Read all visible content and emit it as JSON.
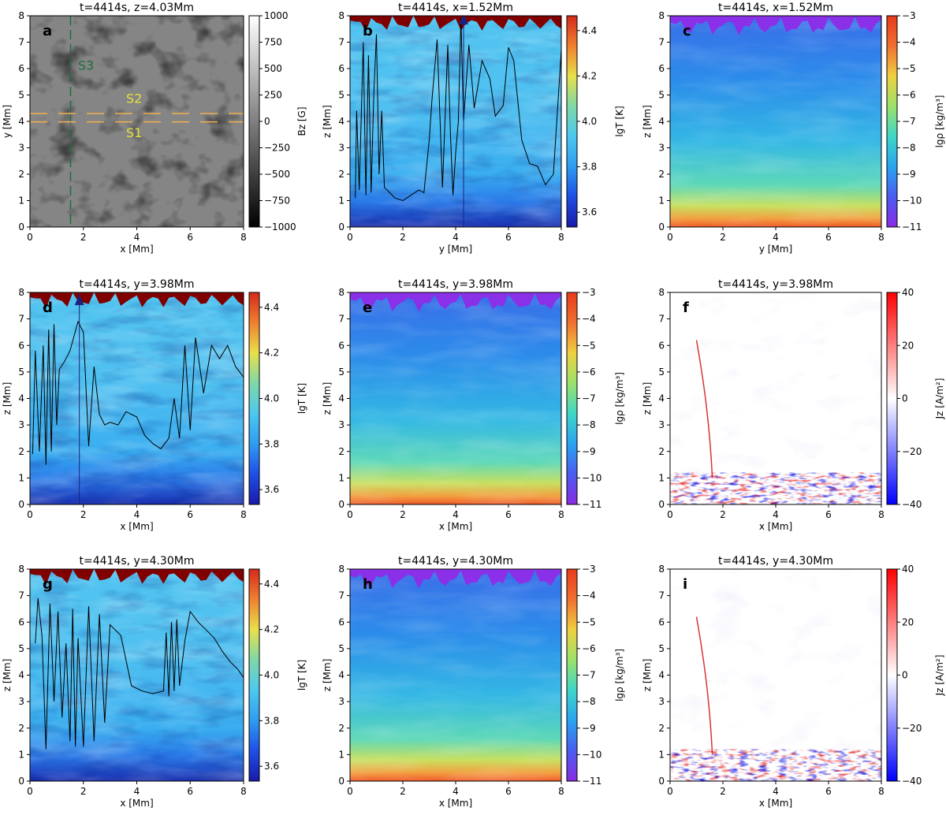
{
  "colors": {
    "bz": [
      "#000000",
      "#ffffff"
    ],
    "lgT": [
      "#1a1aa8",
      "#1e4fe6",
      "#2f9cf0",
      "#4cc8f0",
      "#7fd8a8",
      "#e8e04a",
      "#f08030",
      "#d42a1a",
      "#800000"
    ],
    "rho": [
      "#8a2be2",
      "#4a5cf0",
      "#2aa4f0",
      "#3fd6c8",
      "#9be26a",
      "#f0d040",
      "#f07030",
      "#e83a1a"
    ],
    "jz": [
      "#0000ff",
      "#ffffff",
      "#ff0000"
    ],
    "axis": "#000000",
    "line": "#000000",
    "cut_green": "#1e6e3c",
    "cut_orange": "#f0b050",
    "label_yellow": "#e8e040",
    "label_green": "#1e6e3c",
    "marker": "#1a237e"
  },
  "chart_data": [
    {
      "panel": "a",
      "type": "heatmap",
      "title": "t=4414s, z=4.03Mm",
      "xlabel": "x [Mm]",
      "ylabel": "y [Mm]",
      "xlim": [
        0,
        8
      ],
      "ylim": [
        0,
        8
      ],
      "xticks": [
        "0",
        "2",
        "4",
        "6",
        "8"
      ],
      "yticks": [
        "0",
        "1",
        "2",
        "3",
        "4",
        "5",
        "6",
        "7",
        "8"
      ],
      "colormap": "bz",
      "clabel": "Bz [G]",
      "cticks": [
        "1000",
        "750",
        "500",
        "250",
        "0",
        "−250",
        "−500",
        "−750",
        "−1000"
      ],
      "annotations": [
        {
          "text": "S3",
          "x": 2.1,
          "y": 5.95,
          "color": "label_green"
        },
        {
          "text": "S2",
          "x": 3.9,
          "y": 4.7,
          "color": "label_yellow"
        },
        {
          "text": "S1",
          "x": 3.9,
          "y": 3.4,
          "color": "label_yellow"
        }
      ],
      "cuts": [
        {
          "orient": "v",
          "at": 1.52,
          "color": "cut_green"
        },
        {
          "orient": "h",
          "at": 4.3,
          "color": "cut_orange"
        },
        {
          "orient": "h",
          "at": 3.98,
          "color": "cut_orange"
        }
      ]
    },
    {
      "panel": "b",
      "type": "heatmap",
      "title": "t=4414s, x=1.52Mm",
      "xlabel": "y [Mm]",
      "ylabel": "z [Mm]",
      "xlim": [
        0,
        8
      ],
      "ylim": [
        0,
        8
      ],
      "xticks": [
        "0",
        "2",
        "4",
        "6",
        "8"
      ],
      "yticks": [
        "0",
        "1",
        "2",
        "3",
        "4",
        "5",
        "6",
        "7",
        "8"
      ],
      "colormap": "lgT",
      "clabel": "lgT [K]",
      "cticks": [
        "4.4",
        "4.2",
        "4.0",
        "3.8",
        "3.6"
      ],
      "line": {
        "x": [
          0.2,
          0.25,
          0.35,
          0.5,
          0.6,
          0.7,
          0.8,
          0.9,
          1.0,
          1.1,
          1.2,
          1.3,
          1.5,
          1.7,
          2.0,
          2.3,
          2.6,
          2.8,
          3.0,
          3.1,
          3.3,
          3.5,
          3.7,
          3.8,
          3.9,
          4.0,
          4.1,
          4.2,
          4.3,
          4.5,
          4.7,
          5.0,
          5.3,
          5.5,
          5.8,
          6.0,
          6.2,
          6.5,
          6.8,
          7.1,
          7.4,
          7.7,
          8.0
        ],
        "z": [
          1.1,
          4.4,
          1.4,
          7.0,
          1.2,
          6.5,
          1.3,
          5.0,
          7.3,
          2.0,
          4.4,
          1.5,
          1.3,
          1.1,
          1.0,
          1.2,
          1.4,
          1.3,
          3.3,
          4.8,
          7.1,
          1.5,
          6.9,
          3.6,
          1.2,
          2.8,
          4.0,
          7.9,
          4.0,
          6.9,
          4.5,
          6.3,
          5.6,
          4.2,
          4.6,
          6.8,
          6.3,
          3.3,
          2.4,
          2.3,
          1.6,
          2.0,
          6.7
        ]
      },
      "markers": [
        {
          "type": "triangle",
          "x": 4.3,
          "z": 7.85
        }
      ],
      "vline": 4.3
    },
    {
      "panel": "c",
      "type": "heatmap",
      "title": "t=4414s, x=1.52Mm",
      "xlabel": "y [Mm]",
      "ylabel": "z [Mm]",
      "xlim": [
        0,
        8
      ],
      "ylim": [
        0,
        8
      ],
      "xticks": [
        "0",
        "2",
        "4",
        "6",
        "8"
      ],
      "yticks": [
        "0",
        "1",
        "2",
        "3",
        "4",
        "5",
        "6",
        "7",
        "8"
      ],
      "colormap": "rho",
      "clabel": "lgρ [kg/m³]",
      "cticks": [
        "−3",
        "−4",
        "−5",
        "−6",
        "−7",
        "−8",
        "−9",
        "−10",
        "−11"
      ]
    },
    {
      "panel": "d",
      "type": "heatmap",
      "title": "t=4414s, y=3.98Mm",
      "xlabel": "x [Mm]",
      "ylabel": "z [Mm]",
      "xlim": [
        0,
        8
      ],
      "ylim": [
        0,
        8
      ],
      "xticks": [
        "0",
        "2",
        "4",
        "6",
        "8"
      ],
      "yticks": [
        "0",
        "1",
        "2",
        "3",
        "4",
        "5",
        "6",
        "7",
        "8"
      ],
      "colormap": "lgT",
      "clabel": "lgT [K]",
      "cticks": [
        "4.4",
        "4.2",
        "4.0",
        "3.8",
        "3.6"
      ],
      "line": {
        "x": [
          0.1,
          0.2,
          0.35,
          0.5,
          0.6,
          0.7,
          0.8,
          0.9,
          1.0,
          1.1,
          1.3,
          1.5,
          1.8,
          2.0,
          2.2,
          2.4,
          2.6,
          2.8,
          3.0,
          3.3,
          3.6,
          4.0,
          4.3,
          4.6,
          4.9,
          5.2,
          5.4,
          5.6,
          5.8,
          6.0,
          6.2,
          6.5,
          6.8,
          7.1,
          7.4,
          7.7,
          8.0
        ],
        "z": [
          1.9,
          5.8,
          2.0,
          6.0,
          1.5,
          6.6,
          2.0,
          6.8,
          3.0,
          5.1,
          5.4,
          5.8,
          6.9,
          6.5,
          2.2,
          5.2,
          3.4,
          3.0,
          3.1,
          3.0,
          3.5,
          3.3,
          2.6,
          2.3,
          2.1,
          2.5,
          4.0,
          2.5,
          6.0,
          2.8,
          6.3,
          4.2,
          6.0,
          5.5,
          6.0,
          5.2,
          4.8
        ]
      },
      "markers": [
        {
          "type": "triangle",
          "x": 1.85,
          "z": 7.7
        }
      ],
      "vline": 1.85
    },
    {
      "panel": "e",
      "type": "heatmap",
      "title": "t=4414s, y=3.98Mm",
      "xlabel": "x [Mm]",
      "ylabel": "z [Mm]",
      "xlim": [
        0,
        8
      ],
      "ylim": [
        0,
        8
      ],
      "xticks": [
        "0",
        "2",
        "4",
        "6",
        "8"
      ],
      "yticks": [
        "0",
        "1",
        "2",
        "3",
        "4",
        "5",
        "6",
        "7",
        "8"
      ],
      "colormap": "rho",
      "clabel": "lgρ [kg/m³]",
      "cticks": [
        "−3",
        "−4",
        "−5",
        "−6",
        "−7",
        "−8",
        "−9",
        "−10",
        "−11"
      ]
    },
    {
      "panel": "f",
      "type": "heatmap",
      "title": "t=4414s, y=3.98Mm",
      "xlabel": "x [Mm]",
      "ylabel": "z [Mm]",
      "xlim": [
        0,
        8
      ],
      "ylim": [
        0,
        8
      ],
      "xticks": [
        "0",
        "2",
        "4",
        "6",
        "8"
      ],
      "yticks": [
        "0",
        "1",
        "2",
        "3",
        "4",
        "5",
        "6",
        "7",
        "8"
      ],
      "colormap": "jz",
      "clabel": "Jz [A/m²]",
      "cticks": [
        "40",
        "20",
        "0",
        "−20",
        "−40"
      ]
    },
    {
      "panel": "g",
      "type": "heatmap",
      "title": "t=4414s, y=4.30Mm",
      "xlabel": "x [Mm]",
      "ylabel": "z [Mm]",
      "xlim": [
        0,
        8
      ],
      "ylim": [
        0,
        8
      ],
      "xticks": [
        "0",
        "2",
        "4",
        "6",
        "8"
      ],
      "yticks": [
        "0",
        "1",
        "2",
        "3",
        "4",
        "5",
        "6",
        "7",
        "8"
      ],
      "colormap": "lgT",
      "clabel": "lgT [K]",
      "cticks": [
        "4.4",
        "4.2",
        "4.0",
        "3.8",
        "3.6"
      ],
      "line": {
        "x": [
          0.2,
          0.3,
          0.45,
          0.6,
          0.75,
          0.9,
          1.05,
          1.2,
          1.35,
          1.5,
          1.6,
          1.7,
          1.8,
          2.0,
          2.2,
          2.4,
          2.6,
          2.8,
          3.0,
          3.4,
          3.8,
          4.2,
          4.6,
          5.0,
          5.1,
          5.2,
          5.3,
          5.4,
          5.5,
          5.6,
          5.8,
          6.0,
          6.3,
          6.6,
          6.9,
          7.2,
          7.5,
          7.8,
          8.0
        ],
        "z": [
          5.2,
          6.9,
          5.5,
          1.2,
          6.7,
          3.0,
          6.4,
          2.4,
          5.2,
          1.5,
          6.5,
          1.3,
          5.4,
          1.3,
          6.6,
          1.5,
          6.3,
          2.2,
          5.9,
          5.5,
          3.6,
          3.4,
          3.3,
          3.4,
          5.6,
          3.2,
          6.0,
          3.4,
          6.1,
          3.6,
          5.3,
          6.4,
          6.0,
          5.7,
          5.4,
          4.9,
          4.5,
          4.2,
          3.9
        ]
      }
    },
    {
      "panel": "h",
      "type": "heatmap",
      "title": "t=4414s, y=4.30Mm",
      "xlabel": "x [Mm]",
      "ylabel": "z [Mm]",
      "xlim": [
        0,
        8
      ],
      "ylim": [
        0,
        8
      ],
      "xticks": [
        "0",
        "2",
        "4",
        "6",
        "8"
      ],
      "yticks": [
        "0",
        "1",
        "2",
        "3",
        "4",
        "5",
        "6",
        "7",
        "8"
      ],
      "colormap": "rho",
      "clabel": "lgρ [kg/m³]",
      "cticks": [
        "−3",
        "−4",
        "−5",
        "−6",
        "−7",
        "−8",
        "−9",
        "−10",
        "−11"
      ]
    },
    {
      "panel": "i",
      "type": "heatmap",
      "title": "t=4414s, y=4.30Mm",
      "xlabel": "x [Mm]",
      "ylabel": "z [Mm]",
      "xlim": [
        0,
        8
      ],
      "ylim": [
        0,
        8
      ],
      "xticks": [
        "0",
        "2",
        "4",
        "6",
        "8"
      ],
      "yticks": [
        "0",
        "1",
        "2",
        "3",
        "4",
        "5",
        "6",
        "7",
        "8"
      ],
      "colormap": "jz",
      "clabel": "Jz [A/m²]",
      "cticks": [
        "40",
        "20",
        "0",
        "−20",
        "−40"
      ]
    }
  ]
}
